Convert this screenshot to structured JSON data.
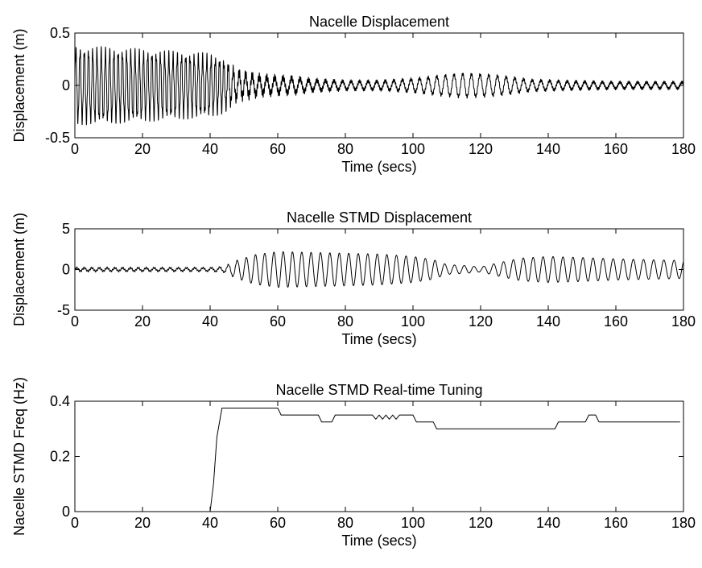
{
  "chart_data": [
    {
      "type": "line",
      "title": "Nacelle Displacement",
      "xlabel": "Time (secs)",
      "ylabel": "Displacement (m)",
      "xlim": [
        0,
        180
      ],
      "ylim": [
        -0.5,
        0.5
      ],
      "xticks": [
        0,
        20,
        40,
        60,
        80,
        100,
        120,
        140,
        160,
        180
      ],
      "yticks": [
        -0.5,
        0,
        0.5
      ],
      "xtick_labels": [
        "0",
        "20",
        "40",
        "60",
        "80",
        "100",
        "120",
        "140",
        "160",
        "180"
      ],
      "ytick_labels": [
        "-0.5",
        "0",
        "0.5"
      ],
      "grid": false,
      "series": [
        {
          "color": "#000000",
          "oscillation": {
            "x_end": 180,
            "envelope": [
              [
                0,
                0.33
              ],
              [
                10,
                0.32
              ],
              [
                20,
                0.3
              ],
              [
                30,
                0.28
              ],
              [
                40,
                0.26
              ],
              [
                44,
                0.22
              ],
              [
                48,
                0.12
              ],
              [
                55,
                0.08
              ],
              [
                65,
                0.07
              ],
              [
                70,
                0.05
              ],
              [
                80,
                0.04
              ],
              [
                90,
                0.04
              ],
              [
                100,
                0.06
              ],
              [
                108,
                0.09
              ],
              [
                115,
                0.11
              ],
              [
                122,
                0.1
              ],
              [
                128,
                0.08
              ],
              [
                135,
                0.05
              ],
              [
                145,
                0.04
              ],
              [
                160,
                0.03
              ],
              [
                180,
                0.03
              ]
            ],
            "frequency_hz": [
              [
                0,
                0.8
              ],
              [
                44,
                0.8
              ],
              [
                48,
                0.55
              ],
              [
                60,
                0.4
              ],
              [
                180,
                0.38
              ]
            ],
            "noise_amplitude": [
              [
                0,
                0.05
              ],
              [
                45,
                0.05
              ],
              [
                60,
                0.03
              ],
              [
                80,
                0.015
              ],
              [
                180,
                0.012
              ]
            ],
            "noise_frequency_hz": 3.1
          }
        }
      ]
    },
    {
      "type": "line",
      "title": "Nacelle STMD Displacement",
      "xlabel": "Time (secs)",
      "ylabel": "Displacement (m)",
      "xlim": [
        0,
        180
      ],
      "ylim": [
        -5,
        5
      ],
      "xticks": [
        0,
        20,
        40,
        60,
        80,
        100,
        120,
        140,
        160,
        180
      ],
      "yticks": [
        -5,
        0,
        5
      ],
      "xtick_labels": [
        "0",
        "20",
        "40",
        "60",
        "80",
        "100",
        "120",
        "140",
        "160",
        "180"
      ],
      "ytick_labels": [
        "-5",
        "0",
        "5"
      ],
      "grid": false,
      "series": [
        {
          "color": "#000000",
          "oscillation": {
            "x_end": 180,
            "envelope": [
              [
                0,
                0.2
              ],
              [
                30,
                0.2
              ],
              [
                40,
                0.2
              ],
              [
                44,
                0.3
              ],
              [
                48,
                1.1
              ],
              [
                53,
                1.8
              ],
              [
                60,
                2.2
              ],
              [
                70,
                2.1
              ],
              [
                80,
                2.0
              ],
              [
                90,
                1.9
              ],
              [
                100,
                1.6
              ],
              [
                106,
                1.2
              ],
              [
                110,
                0.6
              ],
              [
                115,
                0.5
              ],
              [
                120,
                0.3
              ],
              [
                125,
                0.8
              ],
              [
                132,
                1.4
              ],
              [
                140,
                1.6
              ],
              [
                148,
                1.5
              ],
              [
                160,
                1.3
              ],
              [
                170,
                1.2
              ],
              [
                180,
                1.1
              ]
            ],
            "frequency_hz": [
              [
                0,
                0.45
              ],
              [
                44,
                0.4
              ],
              [
                48,
                0.37
              ],
              [
                100,
                0.35
              ],
              [
                180,
                0.33
              ]
            ],
            "noise_amplitude": [
              [
                0,
                0.12
              ],
              [
                44,
                0.1
              ],
              [
                52,
                0.0
              ],
              [
                180,
                0.0
              ]
            ],
            "noise_frequency_hz": 1.9
          }
        }
      ]
    },
    {
      "type": "line",
      "title": "Nacelle STMD Real-time Tuning",
      "xlabel": "Time (secs)",
      "ylabel": "Nacelle STMD Freq (Hz)",
      "xlim": [
        0,
        180
      ],
      "ylim": [
        0,
        0.4
      ],
      "xticks": [
        0,
        20,
        40,
        60,
        80,
        100,
        120,
        140,
        160,
        180
      ],
      "yticks": [
        0,
        0.2,
        0.4
      ],
      "xtick_labels": [
        "0",
        "20",
        "40",
        "60",
        "80",
        "100",
        "120",
        "140",
        "160",
        "180"
      ],
      "ytick_labels": [
        "0",
        "0.2",
        "0.4"
      ],
      "grid": false,
      "series": [
        {
          "color": "#000000",
          "points": [
            [
              40,
              0.0
            ],
            [
              41,
              0.1
            ],
            [
              42,
              0.27
            ],
            [
              43.5,
              0.375
            ],
            [
              60,
              0.375
            ],
            [
              61,
              0.35
            ],
            [
              72,
              0.35
            ],
            [
              73,
              0.325
            ],
            [
              76,
              0.325
            ],
            [
              77,
              0.35
            ],
            [
              88,
              0.35
            ],
            [
              89,
              0.335
            ],
            [
              90,
              0.35
            ],
            [
              91,
              0.335
            ],
            [
              92,
              0.35
            ],
            [
              93,
              0.335
            ],
            [
              94,
              0.35
            ],
            [
              95,
              0.335
            ],
            [
              96,
              0.35
            ],
            [
              100,
              0.35
            ],
            [
              101,
              0.325
            ],
            [
              106,
              0.325
            ],
            [
              107,
              0.3
            ],
            [
              142,
              0.3
            ],
            [
              143,
              0.325
            ],
            [
              151,
              0.325
            ],
            [
              152,
              0.35
            ],
            [
              154,
              0.35
            ],
            [
              155,
              0.325
            ],
            [
              179,
              0.325
            ]
          ]
        }
      ]
    }
  ]
}
